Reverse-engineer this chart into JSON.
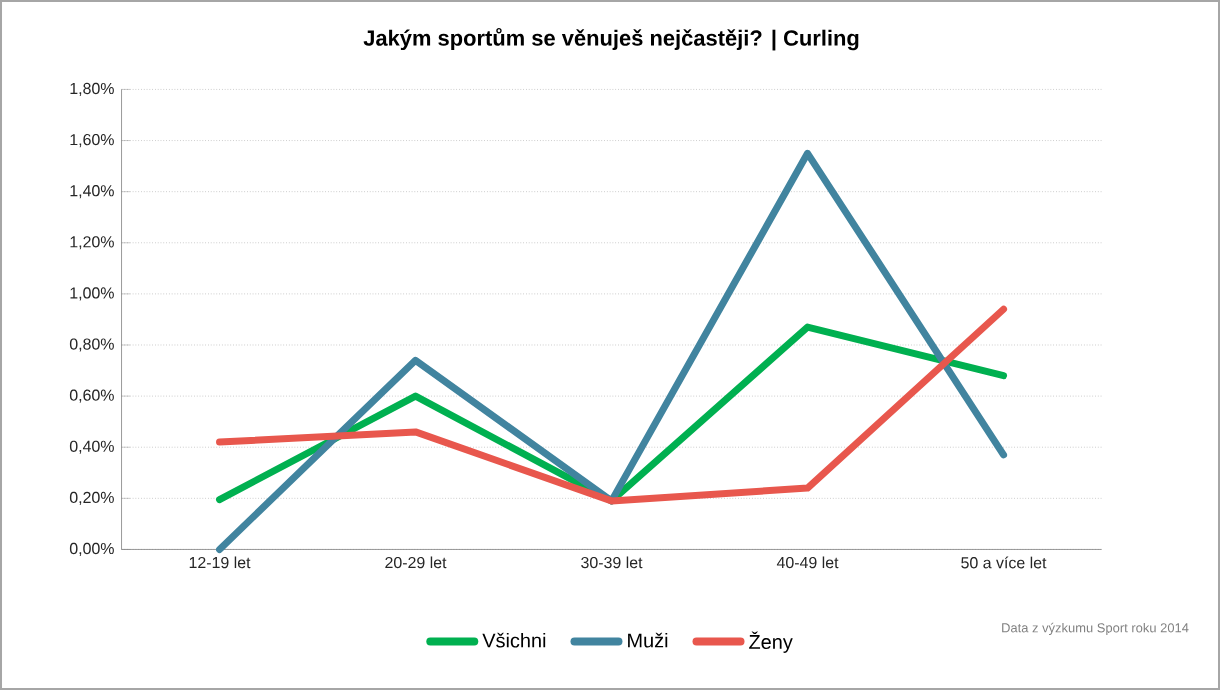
{
  "chart_data": {
    "type": "line",
    "title": "Jakým sportům se věnuješ nejčastěji? | Curling",
    "categories": [
      "12-19 let",
      "20-29 let",
      "30-39 let",
      "40-49 let",
      "50 a více let"
    ],
    "series": [
      {
        "name": "Všichni",
        "color": "#00b050",
        "values": [
          0.195,
          0.6,
          0.19,
          0.87,
          0.68
        ]
      },
      {
        "name": "Muži",
        "color": "#41849f",
        "values": [
          0.0,
          0.74,
          0.19,
          1.55,
          0.37
        ]
      },
      {
        "name": "Ženy",
        "color": "#e8574d",
        "values": [
          0.42,
          0.46,
          0.19,
          0.24,
          0.94
        ]
      }
    ],
    "ylim": [
      0,
      1.8
    ],
    "yticks": [
      {
        "value": 0,
        "label": "0,00%"
      },
      {
        "value": 0.2,
        "label": "0,20%"
      },
      {
        "value": 0.4,
        "label": "0,40%"
      },
      {
        "value": 0.6,
        "label": "0,60%"
      },
      {
        "value": 0.8,
        "label": "0,80%"
      },
      {
        "value": 1.0,
        "label": "1,00%"
      },
      {
        "value": 1.2,
        "label": "1,20%"
      },
      {
        "value": 1.4,
        "label": "1,40%"
      },
      {
        "value": 1.6,
        "label": "1,60%"
      },
      {
        "value": 1.8,
        "label": "1,80%"
      }
    ],
    "grid": "y",
    "legend": "bottom",
    "marker": "none",
    "line_style": "solid",
    "annotations": [
      "Data z výzkumu Sport roku 2014"
    ]
  }
}
